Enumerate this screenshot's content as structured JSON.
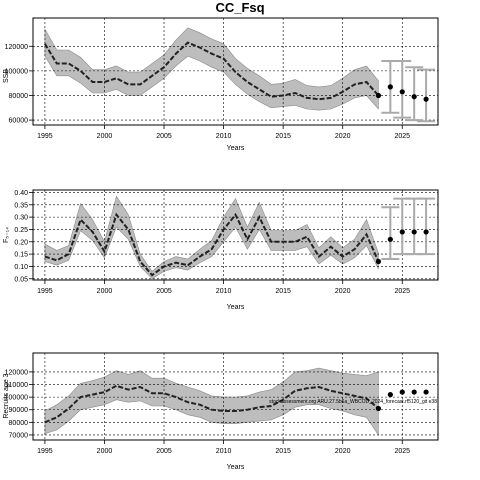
{
  "title": "CC_Fsq",
  "chart_data": [
    {
      "type": "line",
      "ylabel": "SSB",
      "xlabel": "Years",
      "xlim": [
        1994,
        2028
      ],
      "ylim": [
        56000,
        143000
      ],
      "xticks": [
        1995,
        2000,
        2005,
        2010,
        2015,
        2020,
        2025
      ],
      "yticks": [
        60000,
        80000,
        100000,
        120000
      ],
      "grid": true,
      "x": [
        1995,
        1996,
        1997,
        1998,
        1999,
        2000,
        2001,
        2002,
        2003,
        2004,
        2005,
        2006,
        2007,
        2008,
        2009,
        2010,
        2011,
        2012,
        2013,
        2014,
        2015,
        2016,
        2017,
        2018,
        2019,
        2020,
        2021,
        2022,
        2023
      ],
      "series": [
        {
          "values": [
            122000,
            106000,
            106000,
            100000,
            91000,
            91000,
            94000,
            89000,
            89000,
            96000,
            103000,
            114000,
            123000,
            119000,
            114000,
            110000,
            99000,
            91000,
            85000,
            79000,
            80000,
            82000,
            78000,
            77000,
            78000,
            83000,
            89000,
            91000,
            80000
          ],
          "lower": [
            112000,
            96000,
            96000,
            90000,
            82000,
            82000,
            85000,
            80000,
            80000,
            87000,
            94000,
            104000,
            112000,
            108000,
            103000,
            99000,
            89000,
            81000,
            75000,
            70000,
            71000,
            72000,
            69000,
            68000,
            69000,
            73000,
            78000,
            80000,
            69000
          ],
          "upper": [
            134000,
            117000,
            117000,
            111000,
            101000,
            101000,
            104000,
            99000,
            99000,
            106000,
            113000,
            125000,
            135000,
            131000,
            126000,
            122000,
            110000,
            102000,
            96000,
            89000,
            90000,
            93000,
            88000,
            87000,
            88000,
            94000,
            101000,
            104000,
            92000
          ]
        }
      ],
      "projection": {
        "x": [
          2024,
          2025,
          2026,
          2027
        ],
        "values": [
          87000,
          83000,
          79000,
          77000
        ],
        "lower": [
          66000,
          62000,
          60000,
          59000
        ],
        "upper": [
          108000,
          108000,
          103000,
          101000
        ]
      }
    },
    {
      "type": "line",
      "ylabel": "F₅₋₁₄",
      "xlabel": "Years",
      "xlim": [
        1994,
        2028
      ],
      "ylim": [
        0.045,
        0.41
      ],
      "xticks": [
        1995,
        2000,
        2005,
        2010,
        2015,
        2020,
        2025
      ],
      "yticks": [
        0.05,
        0.1,
        0.15,
        0.2,
        0.25,
        0.3,
        0.35,
        0.4
      ],
      "ytick_labels": [
        "0.05",
        "0.10",
        "0.15",
        "0.20",
        "0.25",
        "0.30",
        "0.35",
        "0.40"
      ],
      "grid": true,
      "x": [
        1995,
        1996,
        1997,
        1998,
        1999,
        2000,
        2001,
        2002,
        2003,
        2004,
        2005,
        2006,
        2007,
        2008,
        2009,
        2010,
        2011,
        2012,
        2013,
        2014,
        2015,
        2016,
        2017,
        2018,
        2019,
        2020,
        2021,
        2022,
        2023
      ],
      "series": [
        {
          "values": [
            0.14,
            0.125,
            0.15,
            0.29,
            0.24,
            0.16,
            0.31,
            0.25,
            0.12,
            0.065,
            0.1,
            0.115,
            0.105,
            0.14,
            0.17,
            0.25,
            0.31,
            0.21,
            0.3,
            0.2,
            0.2,
            0.2,
            0.22,
            0.14,
            0.18,
            0.14,
            0.17,
            0.23,
            0.12
          ],
          "lower": [
            0.12,
            0.105,
            0.125,
            0.245,
            0.205,
            0.135,
            0.26,
            0.21,
            0.1,
            0.05,
            0.08,
            0.095,
            0.085,
            0.115,
            0.14,
            0.2,
            0.26,
            0.17,
            0.25,
            0.165,
            0.165,
            0.165,
            0.18,
            0.11,
            0.145,
            0.11,
            0.135,
            0.185,
            0.09
          ],
          "upper": [
            0.19,
            0.165,
            0.185,
            0.355,
            0.29,
            0.2,
            0.385,
            0.31,
            0.15,
            0.08,
            0.12,
            0.14,
            0.13,
            0.17,
            0.205,
            0.3,
            0.375,
            0.26,
            0.36,
            0.245,
            0.245,
            0.245,
            0.27,
            0.175,
            0.22,
            0.175,
            0.21,
            0.29,
            0.155
          ]
        }
      ],
      "projection": {
        "x": [
          2024,
          2025,
          2026,
          2027
        ],
        "values": [
          0.21,
          0.24,
          0.24,
          0.24
        ],
        "lower": [
          0.13,
          0.15,
          0.15,
          0.15
        ],
        "upper": [
          0.34,
          0.375,
          0.375,
          0.375
        ]
      }
    },
    {
      "type": "line",
      "ylabel": "Recruits age 3",
      "xlabel": "Years",
      "xlim": [
        1994,
        2028
      ],
      "ylim": [
        66000,
        135000
      ],
      "xticks": [
        1995,
        2000,
        2005,
        2010,
        2015,
        2020,
        2025
      ],
      "yticks": [
        70000,
        80000,
        90000,
        100000,
        110000,
        120000
      ],
      "grid": true,
      "annotation": "stockassessment.org ARU.27.5b6a_WBCOD_2024_forecast.rf5120_git e38",
      "x": [
        1995,
        1996,
        1997,
        1998,
        1999,
        2000,
        2001,
        2002,
        2003,
        2004,
        2005,
        2006,
        2007,
        2008,
        2009,
        2010,
        2011,
        2012,
        2013,
        2014,
        2015,
        2016,
        2017,
        2018,
        2019,
        2020,
        2021,
        2022,
        2023
      ],
      "series": [
        {
          "values": [
            80000,
            84000,
            91000,
            100000,
            102000,
            104000,
            109000,
            106000,
            108000,
            103000,
            103000,
            100000,
            96000,
            94000,
            90000,
            89000,
            89000,
            90000,
            92000,
            93000,
            98000,
            105000,
            107000,
            108000,
            105000,
            103000,
            101000,
            99000,
            91000
          ],
          "lower": [
            71000,
            74000,
            81000,
            90000,
            92000,
            94000,
            98000,
            96000,
            97000,
            93000,
            93000,
            90000,
            86000,
            84000,
            80000,
            79000,
            79000,
            80000,
            81000,
            82000,
            86000,
            92000,
            94000,
            94000,
            91000,
            89000,
            86000,
            84000,
            70000
          ],
          "upper": [
            89000,
            94000,
            101000,
            111000,
            113000,
            116000,
            121000,
            118000,
            121000,
            115000,
            115000,
            111000,
            108000,
            105000,
            101000,
            100000,
            100000,
            101000,
            104000,
            106000,
            112000,
            120000,
            121000,
            123000,
            121000,
            119000,
            118000,
            117000,
            120000
          ]
        }
      ],
      "projection": {
        "x": [
          2024,
          2025,
          2026,
          2027
        ],
        "values": [
          102000,
          104000,
          104000,
          104000
        ],
        "lower": [
          102000,
          104000,
          104000,
          104000
        ],
        "upper": [
          102000,
          104000,
          104000,
          104000
        ]
      }
    }
  ]
}
